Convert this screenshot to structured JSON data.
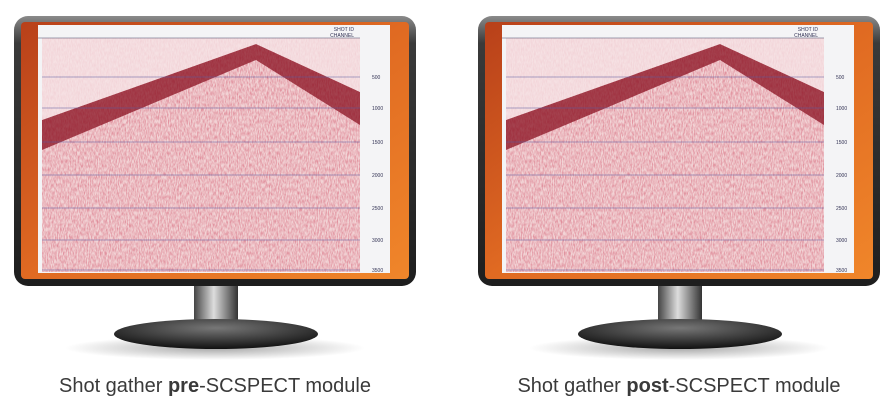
{
  "panels": [
    {
      "caption": {
        "prefix": "Shot gather ",
        "emphasis": "pre",
        "suffix": "-SCSPECT module"
      }
    },
    {
      "caption": {
        "prefix": "Shot gather ",
        "emphasis": "post",
        "suffix": "-SCSPECT module"
      }
    }
  ],
  "display": {
    "header": "SHOT ID",
    "channel": "CHANNEL",
    "time_labels": [
      "500",
      "1000",
      "1500",
      "2000",
      "2500",
      "3000",
      "3500"
    ]
  }
}
